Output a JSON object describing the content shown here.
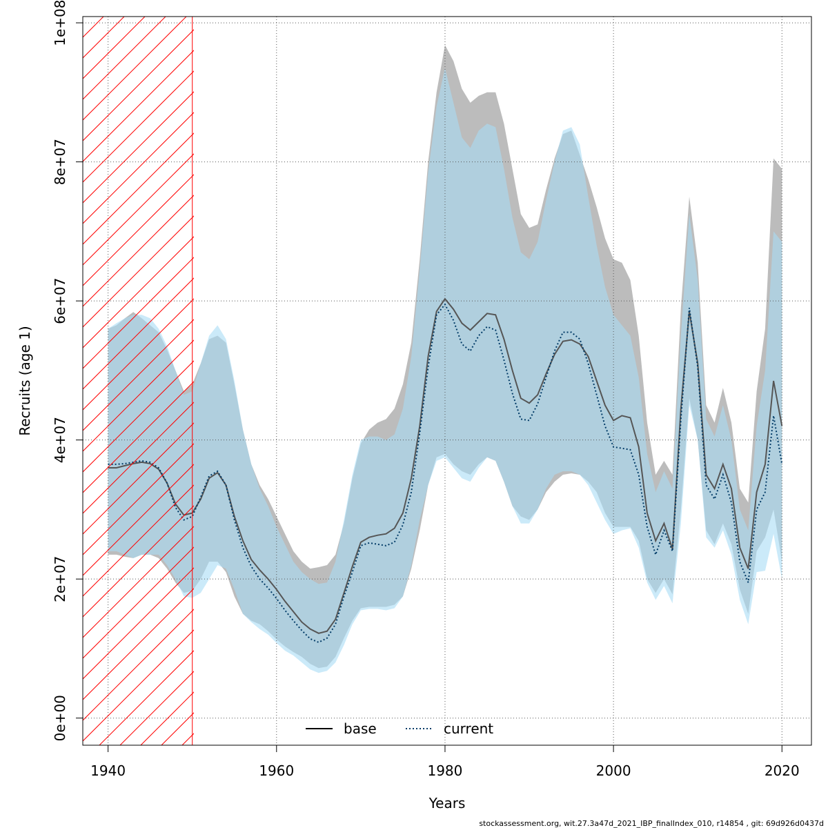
{
  "chart_data": {
    "type": "line",
    "xlabel": "Years",
    "ylabel": "Recruits (age 1)",
    "xlim": [
      1937,
      2023.5
    ],
    "ylim": [
      -3900000.0,
      100900000.0
    ],
    "x_ticks": [
      1940,
      1960,
      1980,
      2000,
      2020
    ],
    "x_tick_labels": [
      "1940",
      "1960",
      "1980",
      "2000",
      "2020"
    ],
    "y_ticks": [
      0,
      20000000,
      40000000,
      60000000,
      80000000,
      100000000
    ],
    "y_tick_labels": [
      "0e+00",
      "2e+07",
      "4e+07",
      "6e+07",
      "8e+07",
      "1e+08"
    ],
    "grid": true,
    "legend": {
      "position": "bottom-center",
      "entries": [
        "base",
        "current"
      ]
    },
    "hatched_region": {
      "x_start": 1937,
      "x_end": 1950,
      "color": "#ff0000"
    },
    "x": [
      1940,
      1941,
      1942,
      1943,
      1944,
      1945,
      1946,
      1947,
      1948,
      1949,
      1950,
      1951,
      1952,
      1953,
      1954,
      1955,
      1956,
      1957,
      1958,
      1959,
      1960,
      1961,
      1962,
      1963,
      1964,
      1965,
      1966,
      1967,
      1968,
      1969,
      1970,
      1971,
      1972,
      1973,
      1974,
      1975,
      1976,
      1977,
      1978,
      1979,
      1980,
      1981,
      1982,
      1983,
      1984,
      1985,
      1986,
      1987,
      1988,
      1989,
      1990,
      1991,
      1992,
      1993,
      1994,
      1995,
      1996,
      1997,
      1998,
      1999,
      2000,
      2001,
      2002,
      2003,
      2004,
      2005,
      2006,
      2007,
      2008,
      2009,
      2010,
      2011,
      2012,
      2013,
      2014,
      2015,
      2016,
      2017,
      2018,
      2019,
      2020
    ],
    "series": [
      {
        "name": "base",
        "line_style": "solid",
        "line_color": "#555555",
        "band_color": "#a6a6a6",
        "values": [
          36.0,
          36.0,
          36.3,
          36.6,
          36.8,
          36.6,
          35.8,
          33.8,
          30.8,
          29.2,
          29.5,
          31.5,
          34.5,
          35.3,
          33.5,
          29.0,
          25.5,
          22.8,
          21.3,
          20.0,
          18.5,
          16.8,
          15.3,
          13.8,
          12.8,
          12.2,
          12.5,
          14.2,
          18.0,
          21.8,
          25.3,
          26.0,
          26.3,
          26.5,
          27.3,
          29.5,
          34.5,
          42.0,
          52.0,
          58.5,
          60.3,
          58.8,
          56.8,
          55.8,
          57.0,
          58.2,
          58.0,
          54.5,
          50.0,
          46.0,
          45.3,
          46.5,
          49.5,
          52.3,
          54.2,
          54.4,
          53.8,
          52.0,
          48.5,
          45.0,
          42.8,
          43.5,
          43.2,
          39.0,
          29.5,
          25.5,
          28.0,
          24.3,
          44.5,
          58.5,
          51.0,
          35.0,
          33.0,
          36.5,
          33.0,
          24.5,
          21.5,
          32.5,
          36.5,
          48.5,
          42.0
        ],
        "upper": [
          56.0,
          56.5,
          57.5,
          58.4,
          57.5,
          56.5,
          55.5,
          53.0,
          50.0,
          47.0,
          48.0,
          51.0,
          54.5,
          55.0,
          54.0,
          48.0,
          41.5,
          36.5,
          33.5,
          31.5,
          29.0,
          26.5,
          24.0,
          22.5,
          21.5,
          21.7,
          22.0,
          23.5,
          28.0,
          34.5,
          39.5,
          41.5,
          42.5,
          43.0,
          44.5,
          48.0,
          54.0,
          66.0,
          80.0,
          90.0,
          96.8,
          94.5,
          90.5,
          88.5,
          89.5,
          90.0,
          90.0,
          85.5,
          79.0,
          72.5,
          70.5,
          71.0,
          76.0,
          80.5,
          84.0,
          84.5,
          81.0,
          77.5,
          73.5,
          69.0,
          66.0,
          65.5,
          63.0,
          55.0,
          42.5,
          35.0,
          37.0,
          35.0,
          59.0,
          75.0,
          65.5,
          45.0,
          42.5,
          47.5,
          42.5,
          33.0,
          31.0,
          47.0,
          56.0,
          80.5,
          79.0
        ],
        "lower": [
          23.5,
          23.5,
          23.2,
          23.0,
          23.5,
          23.5,
          23.0,
          21.5,
          19.5,
          18.0,
          18.3,
          20.0,
          22.5,
          22.5,
          21.0,
          17.5,
          15.0,
          14.0,
          13.5,
          12.5,
          11.3,
          10.3,
          9.5,
          8.8,
          7.8,
          7.2,
          7.4,
          8.8,
          11.5,
          14.0,
          15.8,
          16.0,
          16.0,
          16.0,
          16.3,
          17.5,
          21.5,
          27.0,
          33.5,
          37.5,
          38.0,
          36.5,
          35.5,
          35.0,
          36.5,
          37.5,
          37.0,
          34.0,
          30.5,
          29.0,
          28.5,
          30.0,
          32.5,
          34.0,
          35.0,
          35.2,
          35.0,
          34.0,
          32.5,
          29.5,
          27.5,
          27.5,
          27.5,
          25.5,
          20.0,
          18.0,
          20.0,
          17.8,
          30.0,
          46.0,
          40.0,
          27.0,
          25.0,
          28.0,
          25.0,
          18.5,
          15.0,
          24.0,
          26.0,
          30.0,
          22.5
        ]
      },
      {
        "name": "current",
        "line_style": "dotted",
        "line_color": "#003a66",
        "band_color": "#a8dcf5",
        "values": [
          36.5,
          36.5,
          36.6,
          36.8,
          37.0,
          36.8,
          36.0,
          33.8,
          30.3,
          28.5,
          29.0,
          31.8,
          34.8,
          35.5,
          33.5,
          28.5,
          24.5,
          21.8,
          20.0,
          18.7,
          17.2,
          15.5,
          14.0,
          12.6,
          11.4,
          10.9,
          11.5,
          13.5,
          17.5,
          21.0,
          24.8,
          25.2,
          25.0,
          24.8,
          25.3,
          27.8,
          32.5,
          41.0,
          50.5,
          58.0,
          59.5,
          57.2,
          53.8,
          52.8,
          55.0,
          56.3,
          55.8,
          51.5,
          46.7,
          43.0,
          42.8,
          45.2,
          49.0,
          52.8,
          55.5,
          55.5,
          54.5,
          51.0,
          46.5,
          42.0,
          39.0,
          38.8,
          38.6,
          35.0,
          27.5,
          23.5,
          27.0,
          24.0,
          43.0,
          59.0,
          50.5,
          33.5,
          31.5,
          35.0,
          31.0,
          22.5,
          19.5,
          30.0,
          32.5,
          43.5,
          36.5
        ],
        "upper": [
          56.0,
          56.8,
          57.5,
          58.0,
          58.0,
          57.5,
          56.0,
          53.5,
          50.0,
          46.5,
          47.0,
          51.0,
          55.0,
          56.5,
          54.5,
          48.5,
          41.5,
          36.5,
          33.0,
          30.5,
          27.5,
          25.0,
          22.5,
          21.0,
          20.0,
          19.3,
          19.5,
          22.5,
          28.5,
          35.0,
          40.0,
          40.5,
          40.5,
          40.0,
          40.8,
          44.5,
          52.0,
          64.5,
          78.5,
          88.0,
          93.5,
          88.5,
          83.5,
          82.0,
          84.5,
          85.5,
          85.0,
          79.0,
          72.0,
          67.0,
          66.0,
          68.5,
          74.5,
          80.0,
          84.5,
          85.0,
          82.5,
          75.0,
          68.0,
          62.0,
          58.0,
          56.5,
          55.0,
          49.0,
          38.0,
          32.5,
          35.5,
          33.0,
          55.0,
          72.5,
          63.0,
          43.0,
          40.5,
          45.0,
          40.0,
          30.0,
          27.0,
          42.0,
          50.0,
          70.0,
          68.5
        ],
        "lower": [
          24.0,
          24.0,
          23.5,
          23.0,
          23.5,
          23.5,
          23.5,
          22.0,
          20.0,
          17.5,
          17.3,
          18.0,
          20.0,
          22.0,
          21.5,
          18.5,
          15.0,
          13.8,
          12.8,
          12.0,
          10.8,
          9.7,
          9.0,
          8.0,
          7.0,
          6.5,
          6.8,
          8.0,
          10.5,
          13.5,
          15.5,
          15.7,
          15.7,
          15.5,
          15.8,
          17.5,
          22.0,
          28.5,
          33.5,
          37.0,
          37.5,
          36.0,
          34.5,
          34.0,
          36.0,
          37.5,
          37.0,
          34.0,
          30.5,
          28.0,
          28.0,
          30.0,
          33.0,
          35.0,
          35.5,
          35.5,
          35.0,
          33.5,
          31.0,
          28.5,
          26.5,
          27.0,
          27.3,
          24.5,
          19.5,
          17.0,
          19.0,
          16.5,
          28.0,
          45.0,
          40.0,
          26.0,
          24.5,
          27.0,
          23.5,
          17.0,
          13.5,
          21.0,
          21.2,
          26.5,
          20.0
        ]
      }
    ],
    "values_unit_multiplier": 1000000
  },
  "footer": "stockassessment.org, wit.27.3a47d_2021_IBP_finalIndex_010, r14854 , git: 69d926d0437d"
}
